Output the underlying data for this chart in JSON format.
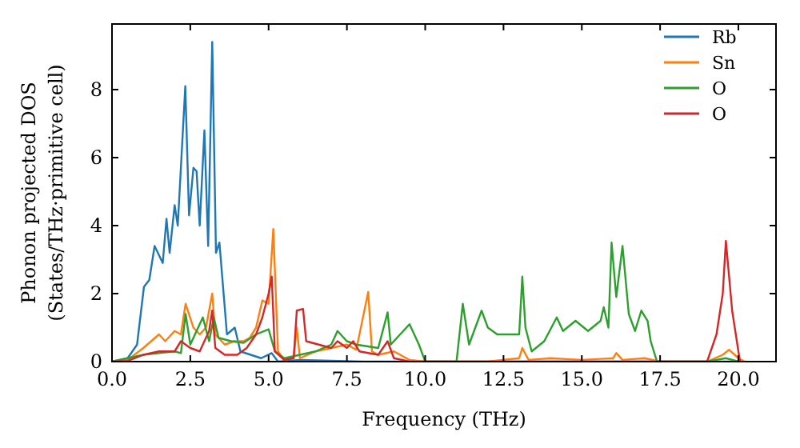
{
  "chart_data": {
    "type": "line",
    "xlabel": "Frequency (THz)",
    "ylabel": "Phonon projected DOS\n(States/THz·primitive cell)",
    "xlim": [
      0,
      21.2
    ],
    "ylim": [
      0,
      9.93
    ],
    "xticks": [
      {
        "value": 0,
        "label": "0.0"
      },
      {
        "value": 2.5,
        "label": "2.5"
      },
      {
        "value": 5,
        "label": "5.0"
      },
      {
        "value": 7.5,
        "label": "7.5"
      },
      {
        "value": 10,
        "label": "10.0"
      },
      {
        "value": 12.5,
        "label": "12.5"
      },
      {
        "value": 15,
        "label": "15.0"
      },
      {
        "value": 17.5,
        "label": "17.5"
      },
      {
        "value": 20,
        "label": "20.0"
      }
    ],
    "yticks": [
      0,
      2,
      4,
      6,
      8
    ],
    "legend": "top right",
    "grid": false,
    "marker": "none",
    "line_style": "solid",
    "series": [
      {
        "name": "Rb",
        "color": "#1f77b4",
        "x": [
          0,
          0.5,
          0.8,
          1.02,
          1.19,
          1.36,
          1.62,
          1.74,
          1.84,
          2.0,
          2.1,
          2.34,
          2.46,
          2.6,
          2.7,
          2.8,
          2.95,
          3.07,
          3.2,
          3.32,
          3.43,
          3.67,
          3.92,
          4.1,
          4.76,
          5.1,
          5.3,
          6,
          8,
          10,
          20
        ],
        "values": [
          0,
          0.1,
          0.5,
          2.2,
          2.4,
          3.4,
          2.9,
          4.2,
          3.2,
          4.6,
          4.0,
          8.1,
          4.3,
          5.7,
          5.6,
          4.0,
          6.8,
          3.4,
          9.4,
          3.2,
          3.5,
          0.8,
          1.0,
          0.3,
          0.1,
          0.25,
          0,
          0.05,
          0,
          0,
          0
        ]
      },
      {
        "name": "Sn",
        "color": "#ff7f0e",
        "x": [
          0,
          0.5,
          1.0,
          1.5,
          1.7,
          2.0,
          2.2,
          2.35,
          2.6,
          2.8,
          3.0,
          3.2,
          3.3,
          3.6,
          3.9,
          4.2,
          4.4,
          4.6,
          4.8,
          5.0,
          5.15,
          5.3,
          5.5,
          5.8,
          5.9,
          6.0,
          6.5,
          7.0,
          7.5,
          7.8,
          8.18,
          8.3,
          8.5,
          9,
          9.5,
          10,
          12,
          13,
          13.1,
          13.3,
          14,
          15,
          16,
          16.1,
          16.3,
          17,
          17.5,
          19,
          19.5,
          19.7,
          20,
          20.2
        ],
        "values": [
          0,
          0.05,
          0.4,
          0.8,
          0.6,
          0.9,
          0.8,
          1.7,
          1.0,
          0.8,
          1.0,
          2.0,
          0.8,
          0.5,
          0.6,
          0.6,
          0.7,
          1.0,
          1.8,
          1.7,
          3.9,
          0.3,
          0.05,
          0.1,
          1.0,
          0.1,
          0.3,
          0.4,
          0.5,
          0.35,
          2.05,
          0.3,
          0.2,
          0.3,
          0.05,
          0,
          0,
          0.1,
          0.4,
          0.05,
          0.1,
          0.05,
          0.1,
          0.25,
          0.05,
          0.1,
          0,
          0,
          0.2,
          0.35,
          0.1,
          0
        ]
      },
      {
        "name": "O",
        "color": "#2ca02c",
        "x": [
          0,
          1,
          1.5,
          2.0,
          2.2,
          2.35,
          2.5,
          2.9,
          3.1,
          3.25,
          3.4,
          3.8,
          4.2,
          4.6,
          5.0,
          5.2,
          5.5,
          6,
          6.5,
          7,
          7.2,
          7.5,
          7.8,
          8.5,
          8.8,
          8.9,
          9.3,
          9.5,
          9.8,
          10.0,
          11.0,
          11.2,
          11.4,
          11.8,
          12.0,
          12.3,
          13,
          13.1,
          13.2,
          13.4,
          13.8,
          14.2,
          14.4,
          14.8,
          15.2,
          15.6,
          15.7,
          15.85,
          15.95,
          16.1,
          16.3,
          16.5,
          16.7,
          16.9,
          17.1,
          17.2,
          17.4,
          19,
          19.6,
          20.0
        ],
        "values": [
          0,
          0.2,
          0.25,
          0.3,
          0.25,
          1.4,
          0.5,
          1.3,
          0.6,
          1.3,
          0.7,
          0.6,
          0.55,
          0.8,
          0.95,
          0.3,
          0.1,
          0.2,
          0.3,
          0.5,
          0.9,
          0.6,
          0.5,
          0.4,
          1.45,
          0.5,
          0.9,
          1.1,
          0.5,
          0,
          0,
          1.7,
          0.5,
          1.5,
          1.0,
          0.8,
          0.8,
          2.5,
          1.0,
          0.3,
          0.6,
          1.3,
          0.9,
          1.2,
          0.9,
          1.2,
          1.6,
          1.0,
          3.5,
          1.9,
          3.4,
          1.4,
          0.9,
          1.5,
          1.2,
          0.6,
          0,
          0,
          0.1,
          0
        ]
      },
      {
        "name": "O",
        "color": "#d62728",
        "x": [
          0,
          0.5,
          1.0,
          1.5,
          2.0,
          2.2,
          2.5,
          2.8,
          3.1,
          3.2,
          3.3,
          3.6,
          4.0,
          4.3,
          4.6,
          4.8,
          5.0,
          5.1,
          5.2,
          5.5,
          5.8,
          5.9,
          6.1,
          6.2,
          6.6,
          7,
          7.2,
          7.5,
          7.7,
          7.9,
          8.5,
          8.8,
          9,
          9.5,
          19,
          19.3,
          19.5,
          19.6,
          19.8,
          20.05
        ],
        "values": [
          0,
          0.02,
          0.2,
          0.3,
          0.3,
          0.6,
          0.4,
          0.3,
          0.9,
          1.5,
          0.4,
          0.2,
          0.2,
          0.4,
          0.8,
          1.3,
          2.0,
          2.5,
          0.3,
          0.05,
          0.1,
          1.5,
          1.55,
          0.6,
          0.5,
          0.4,
          0.6,
          0.4,
          0.6,
          0.3,
          0.2,
          0.6,
          0.1,
          0,
          0,
          0.8,
          2.0,
          3.55,
          1.5,
          0
        ]
      }
    ]
  }
}
